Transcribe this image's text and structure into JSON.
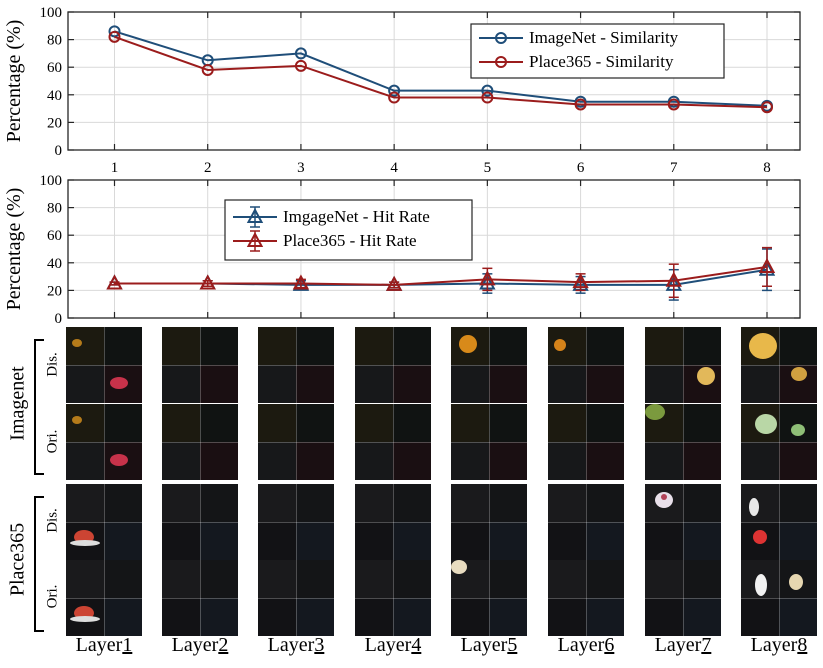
{
  "chart_data": [
    {
      "type": "line",
      "ylabel": "Percentage (%)",
      "ylim": [
        0,
        100
      ],
      "yticks": [
        "0",
        "20",
        "40",
        "60",
        "80",
        "100"
      ],
      "x": [
        "1",
        "2",
        "3",
        "4",
        "5",
        "6",
        "7",
        "8"
      ],
      "grid": true,
      "legend_position": "top-right",
      "series": [
        {
          "name": "ImageNet - Similarity",
          "color": "#1f4e79",
          "marker": "circle",
          "values": [
            86,
            65,
            70,
            43,
            43,
            35,
            35,
            32
          ]
        },
        {
          "name": "Place365 - Similarity",
          "color": "#9b1c1c",
          "marker": "circle",
          "values": [
            82,
            58,
            61,
            38,
            38,
            33,
            33,
            31
          ]
        }
      ]
    },
    {
      "type": "line",
      "ylabel": "Percentage (%)",
      "ylim": [
        0,
        100
      ],
      "yticks": [
        "0",
        "20",
        "40",
        "60",
        "80",
        "100"
      ],
      "x": [
        "1",
        "2",
        "3",
        "4",
        "5",
        "6",
        "7",
        "8"
      ],
      "grid": true,
      "legend_position": "top-center",
      "series": [
        {
          "name": "ImgageNet - Hit Rate",
          "color": "#1f4e79",
          "marker": "triangle",
          "values": [
            25,
            25,
            24,
            24,
            25,
            24,
            24,
            35
          ],
          "errors": [
            1,
            2,
            3,
            2,
            7,
            6,
            11,
            15
          ]
        },
        {
          "name": "Place365 - Hit Rate",
          "color": "#9b1c1c",
          "marker": "triangle",
          "values": [
            25,
            25,
            25,
            24,
            28,
            26,
            27,
            37
          ],
          "errors": [
            1,
            2,
            3,
            2,
            8,
            6,
            12,
            14
          ]
        }
      ]
    }
  ],
  "visualization": {
    "groups": [
      {
        "name": "Imagenet",
        "rows": [
          "Dis.",
          "Ori."
        ]
      },
      {
        "name": "Place365",
        "rows": [
          "Dis.",
          "Ori."
        ]
      }
    ],
    "layers": [
      {
        "prefix": "Layer",
        "num": "1"
      },
      {
        "prefix": "Layer",
        "num": "2"
      },
      {
        "prefix": "Layer",
        "num": "3"
      },
      {
        "prefix": "Layer",
        "num": "4"
      },
      {
        "prefix": "Layer",
        "num": "5"
      },
      {
        "prefix": "Layer",
        "num": "6"
      },
      {
        "prefix": "Layer",
        "num": "7"
      },
      {
        "prefix": "Layer",
        "num": "8"
      }
    ]
  }
}
